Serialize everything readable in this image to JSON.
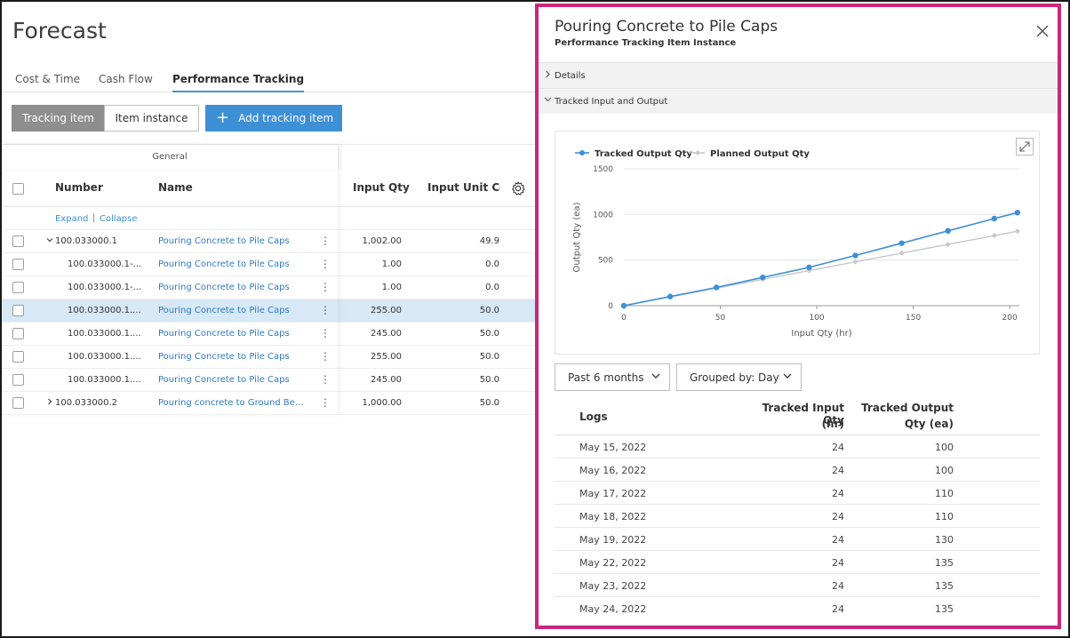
{
  "page": {
    "title": "Forecast"
  },
  "tabs": [
    {
      "label": "Cost & Time"
    },
    {
      "label": "Cash Flow"
    },
    {
      "label": "Performance Tracking",
      "active": true
    }
  ],
  "toolbar": {
    "toggle_tracking": "Tracking item",
    "toggle_instance": "Item instance",
    "add_label": "Add tracking item"
  },
  "table": {
    "group_header": "General",
    "columns": {
      "number": "Number",
      "name": "Name",
      "input_qty": "Input Qty",
      "input_unit_cost": "Input Unit Cos"
    },
    "expand": "Expand",
    "separator": "|",
    "collapse": "Collapse",
    "rows": [
      {
        "number": "100.033000.1",
        "name": "Pouring Concrete to Pile Caps",
        "qty": "1,002.00",
        "cost": "49.9",
        "chevron": "down",
        "indent": 0
      },
      {
        "number": "100.033000.1-...",
        "name": "Pouring Concrete to Pile Caps",
        "qty": "1.00",
        "cost": "0.0",
        "indent": 1
      },
      {
        "number": "100.033000.1-...",
        "name": "Pouring Concrete to Pile Caps",
        "qty": "1.00",
        "cost": "0.0",
        "indent": 1
      },
      {
        "number": "100.033000.1....",
        "name": "Pouring Concrete to Pile Caps",
        "qty": "255.00",
        "cost": "50.0",
        "indent": 1,
        "selected": true
      },
      {
        "number": "100.033000.1....",
        "name": "Pouring Concrete to Pile Caps",
        "qty": "245.00",
        "cost": "50.0",
        "indent": 1
      },
      {
        "number": "100.033000.1....",
        "name": "Pouring Concrete to Pile Caps",
        "qty": "255.00",
        "cost": "50.0",
        "indent": 1
      },
      {
        "number": "100.033000.1....",
        "name": "Pouring Concrete to Pile Caps",
        "qty": "245.00",
        "cost": "50.0",
        "indent": 1
      },
      {
        "number": "100.033000.2",
        "name": "Pouring concrete to Ground Bea...",
        "qty": "1,000.00",
        "cost": "50.0",
        "chevron": "right",
        "indent": 0
      }
    ]
  },
  "panel": {
    "title": "Pouring Concrete to Pile Caps",
    "subtitle": "Performance Tracking Item Instance",
    "close_icon": "close-icon",
    "sections": [
      {
        "label": "Details",
        "expanded": false
      },
      {
        "label": "Tracked Input and Output",
        "expanded": true
      }
    ],
    "filters": {
      "range": "Past 6 months",
      "group": "Grouped by: Day"
    },
    "logs": {
      "headers": {
        "logs": "Logs",
        "input_l1": "Tracked Input Qty",
        "input_l2": "(hr)",
        "output_l1": "Tracked Output",
        "output_l2": "Qty (ea)"
      },
      "rows": [
        {
          "date": "May 15, 2022",
          "input": "24",
          "output": "100"
        },
        {
          "date": "May 16, 2022",
          "input": "24",
          "output": "100"
        },
        {
          "date": "May 17, 2022",
          "input": "24",
          "output": "110"
        },
        {
          "date": "May 18, 2022",
          "input": "24",
          "output": "110"
        },
        {
          "date": "May 19, 2022",
          "input": "24",
          "output": "130"
        },
        {
          "date": "May 22, 2022",
          "input": "24",
          "output": "135"
        },
        {
          "date": "May 23, 2022",
          "input": "24",
          "output": "135"
        },
        {
          "date": "May 24, 2022",
          "input": "24",
          "output": "135"
        }
      ]
    }
  },
  "colors": {
    "accent": "#3d8fd6",
    "panel_border": "#c8297a",
    "tracked": "#3d8fd6",
    "planned": "#c8c8c8",
    "selected_row": "#d7e8f6"
  },
  "chart_data": {
    "type": "line",
    "xlabel": "Input Qty (hr)",
    "ylabel": "Output Qty (ea)",
    "xlim": [
      0,
      205
    ],
    "ylim": [
      0,
      1500
    ],
    "xticks": [
      0,
      50,
      100,
      150,
      200
    ],
    "yticks": [
      0,
      500,
      1000,
      1500
    ],
    "legend_position": "top-left",
    "grid": true,
    "series": [
      {
        "name": "Tracked Output Qty",
        "color": "#3d8fd6",
        "points": [
          [
            0,
            0
          ],
          [
            24,
            100
          ],
          [
            48,
            200
          ],
          [
            72,
            310
          ],
          [
            96,
            420
          ],
          [
            120,
            550
          ],
          [
            144,
            685
          ],
          [
            168,
            820
          ],
          [
            192,
            955
          ],
          [
            204,
            1020
          ]
        ]
      },
      {
        "name": "Planned Output Qty",
        "color": "#c8c8c8",
        "points": [
          [
            0,
            0
          ],
          [
            24,
            96
          ],
          [
            48,
            192
          ],
          [
            72,
            288
          ],
          [
            96,
            384
          ],
          [
            120,
            480
          ],
          [
            144,
            576
          ],
          [
            168,
            672
          ],
          [
            192,
            768
          ],
          [
            204,
            816
          ]
        ]
      }
    ]
  }
}
